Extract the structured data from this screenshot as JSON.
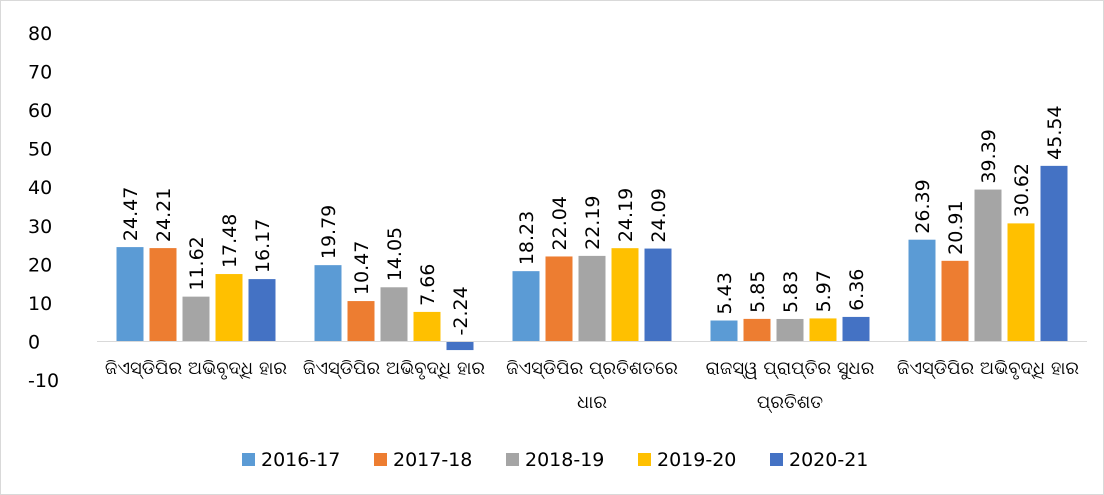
{
  "chart_data": {
    "type": "bar",
    "categories": [
      "ଜିଏସ୍ଡିପିର ଅଭିବୃଦ୍ଧି ହାର",
      "ଜିଏସ୍ଡିପିର ଅଭିବୃଦ୍ଧି ହାର",
      "ଜିଏସ୍ଡିପିର ପ୍ରତିଶତରେ ଧାର",
      "ରାଜସ୍ୱ ପ୍ରାପ୍ତିର ସୁଧର ପ୍ରତିଶତ",
      "ଜିଏସ୍ଡିପିର ଅଭିବୃଦ୍ଧି ହାର"
    ],
    "series": [
      {
        "name": "2016-17",
        "color": "#5b9bd5",
        "values": [
          24.47,
          19.79,
          18.23,
          5.43,
          26.39
        ]
      },
      {
        "name": "2017-18",
        "color": "#ed7d31",
        "values": [
          24.21,
          10.47,
          22.04,
          5.85,
          20.91
        ]
      },
      {
        "name": "2018-19",
        "color": "#a5a5a5",
        "values": [
          11.62,
          14.05,
          22.19,
          5.83,
          39.39
        ]
      },
      {
        "name": "2019-20",
        "color": "#ffc000",
        "values": [
          17.48,
          7.66,
          24.19,
          5.97,
          30.62
        ]
      },
      {
        "name": "2020-21",
        "color": "#4472c4",
        "values": [
          16.17,
          -2.24,
          24.09,
          6.36,
          45.54
        ]
      }
    ],
    "ylim": [
      -10,
      80
    ],
    "yticks": [
      -10,
      0,
      10,
      20,
      30,
      40,
      50,
      60,
      70,
      80
    ],
    "grid": false,
    "legend": "bottom"
  }
}
